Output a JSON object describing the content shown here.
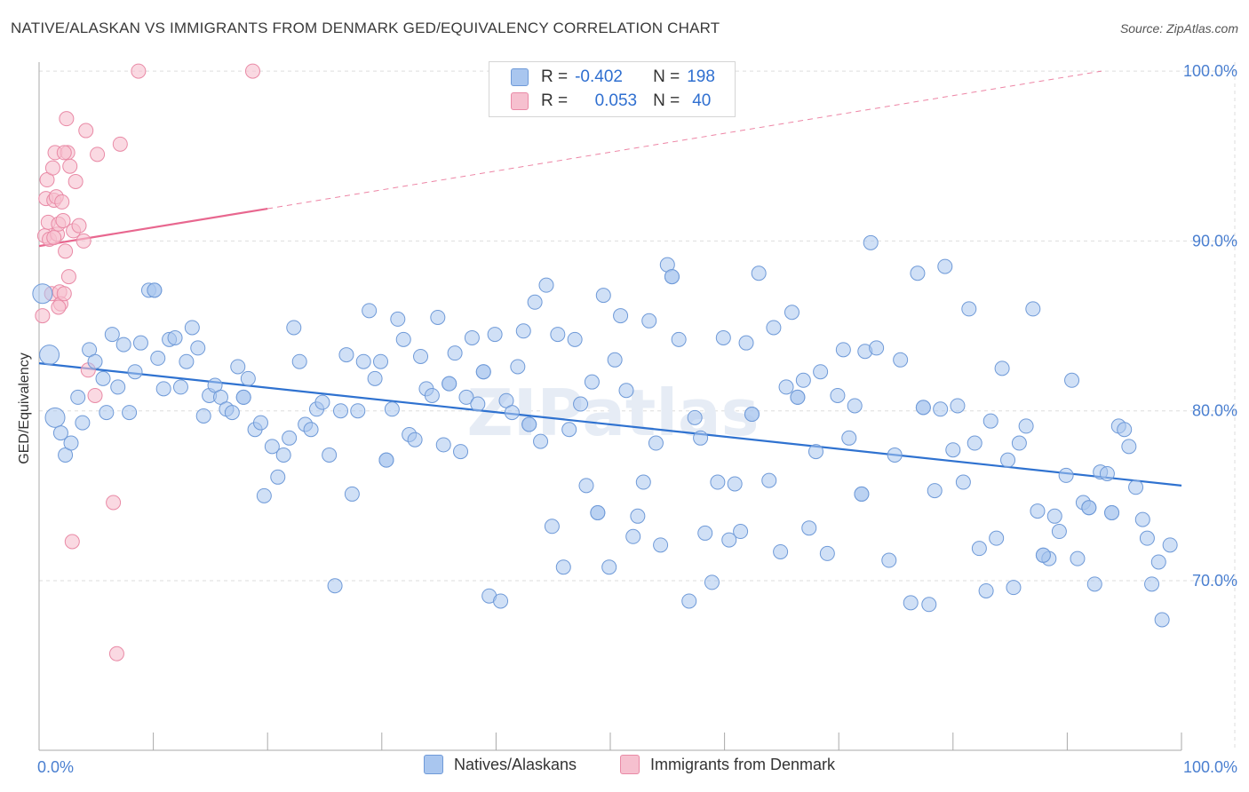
{
  "title": "NATIVE/ALASKAN VS IMMIGRANTS FROM DENMARK GED/EQUIVALENCY CORRELATION CHART",
  "source": "Source: ZipAtlas.com",
  "watermark": "ZIPatlas",
  "legend": {
    "rows": [
      {
        "r_label": "R =",
        "r_value": "-0.402",
        "n_label": "N =",
        "n_value": "198"
      },
      {
        "r_label": "R =",
        "r_value": "0.053",
        "n_label": "N =",
        "n_value": "40"
      }
    ]
  },
  "colors": {
    "blue_fill": "#a9c6ef",
    "blue_stroke": "#6f9ad8",
    "blue_line": "#2f72d0",
    "pink_fill": "#f6c0cf",
    "pink_stroke": "#e98aa6",
    "pink_line": "#e8678f",
    "label_blue": "#4a7fd0",
    "grid": "#dddddd"
  },
  "chart_data": {
    "type": "scatter",
    "title": "NATIVE/ALASKAN VS IMMIGRANTS FROM DENMARK GED/EQUIVALENCY CORRELATION CHART",
    "xlabel": "",
    "ylabel": "GED/Equivalency",
    "xlim": [
      0,
      100
    ],
    "ylim": [
      60,
      102
    ],
    "x_tick_labels": [
      "0.0%",
      "100.0%"
    ],
    "y_ticks": [
      70,
      80,
      90,
      100
    ],
    "y_tick_labels": [
      "70.0%",
      "80.0%",
      "90.0%",
      "100.0%"
    ],
    "legend_position": "top-center",
    "series": [
      {
        "name": "Natives/Alaskans",
        "color": "#a9c6ef",
        "r": -0.402,
        "n": 198,
        "trend": {
          "x": [
            0,
            100
          ],
          "y": [
            82.8,
            75.6
          ],
          "style": "solid"
        },
        "points": [
          [
            0.3,
            86.9
          ],
          [
            0.9,
            83.3
          ],
          [
            1.4,
            79.6
          ],
          [
            1.9,
            78.7
          ],
          [
            2.3,
            77.4
          ],
          [
            2.8,
            78.1
          ],
          [
            3.4,
            80.8
          ],
          [
            3.8,
            79.3
          ],
          [
            4.4,
            83.6
          ],
          [
            4.9,
            82.9
          ],
          [
            5.6,
            81.9
          ],
          [
            5.9,
            79.9
          ],
          [
            6.4,
            84.5
          ],
          [
            6.9,
            81.4
          ],
          [
            7.4,
            83.9
          ],
          [
            7.9,
            79.9
          ],
          [
            8.4,
            82.3
          ],
          [
            8.9,
            84.0
          ],
          [
            9.6,
            87.1
          ],
          [
            10.1,
            87.1
          ],
          [
            10.4,
            83.1
          ],
          [
            10.9,
            81.3
          ],
          [
            11.4,
            84.2
          ],
          [
            11.9,
            84.3
          ],
          [
            12.4,
            81.4
          ],
          [
            12.9,
            82.9
          ],
          [
            13.4,
            84.9
          ],
          [
            13.9,
            83.7
          ],
          [
            14.4,
            79.7
          ],
          [
            14.9,
            80.9
          ],
          [
            15.4,
            81.5
          ],
          [
            15.9,
            80.8
          ],
          [
            16.4,
            80.1
          ],
          [
            16.9,
            79.9
          ],
          [
            17.4,
            82.6
          ],
          [
            17.9,
            80.8
          ],
          [
            18.3,
            81.9
          ],
          [
            18.9,
            78.9
          ],
          [
            19.4,
            79.3
          ],
          [
            19.7,
            75.0
          ],
          [
            20.4,
            77.9
          ],
          [
            20.9,
            76.1
          ],
          [
            21.4,
            77.4
          ],
          [
            21.9,
            78.4
          ],
          [
            22.3,
            84.9
          ],
          [
            22.8,
            82.9
          ],
          [
            23.3,
            79.2
          ],
          [
            23.8,
            78.9
          ],
          [
            24.3,
            80.1
          ],
          [
            24.8,
            80.5
          ],
          [
            25.4,
            77.4
          ],
          [
            25.9,
            69.7
          ],
          [
            26.4,
            80.0
          ],
          [
            26.9,
            83.3
          ],
          [
            27.4,
            75.1
          ],
          [
            27.9,
            80.0
          ],
          [
            28.4,
            82.9
          ],
          [
            28.9,
            85.9
          ],
          [
            29.4,
            81.9
          ],
          [
            29.9,
            82.9
          ],
          [
            30.4,
            77.1
          ],
          [
            30.9,
            80.1
          ],
          [
            31.4,
            85.4
          ],
          [
            31.9,
            84.2
          ],
          [
            32.4,
            78.6
          ],
          [
            32.9,
            78.3
          ],
          [
            33.4,
            83.2
          ],
          [
            33.9,
            81.3
          ],
          [
            34.4,
            80.9
          ],
          [
            34.9,
            85.5
          ],
          [
            35.4,
            78.0
          ],
          [
            35.9,
            81.6
          ],
          [
            36.4,
            83.4
          ],
          [
            36.9,
            77.6
          ],
          [
            37.4,
            80.8
          ],
          [
            37.9,
            84.3
          ],
          [
            38.4,
            80.4
          ],
          [
            38.9,
            82.3
          ],
          [
            39.4,
            69.1
          ],
          [
            39.9,
            84.5
          ],
          [
            40.4,
            68.8
          ],
          [
            40.9,
            80.6
          ],
          [
            41.4,
            79.9
          ],
          [
            41.9,
            82.6
          ],
          [
            42.4,
            84.7
          ],
          [
            42.9,
            79.2
          ],
          [
            43.4,
            86.4
          ],
          [
            43.9,
            78.2
          ],
          [
            44.4,
            87.4
          ],
          [
            44.9,
            73.2
          ],
          [
            45.4,
            84.5
          ],
          [
            45.9,
            70.8
          ],
          [
            46.4,
            78.9
          ],
          [
            46.9,
            84.2
          ],
          [
            47.4,
            80.4
          ],
          [
            47.9,
            75.6
          ],
          [
            48.4,
            81.7
          ],
          [
            48.9,
            74.0
          ],
          [
            49.4,
            86.8
          ],
          [
            49.9,
            70.8
          ],
          [
            50.4,
            83.0
          ],
          [
            50.9,
            85.6
          ],
          [
            51.4,
            81.2
          ],
          [
            52.0,
            72.6
          ],
          [
            52.4,
            73.8
          ],
          [
            52.9,
            75.8
          ],
          [
            53.4,
            85.3
          ],
          [
            54.0,
            78.1
          ],
          [
            54.4,
            72.1
          ],
          [
            55.0,
            88.6
          ],
          [
            55.4,
            87.9
          ],
          [
            56.0,
            84.2
          ],
          [
            56.9,
            68.8
          ],
          [
            57.4,
            79.6
          ],
          [
            57.9,
            78.4
          ],
          [
            58.3,
            72.8
          ],
          [
            58.9,
            69.9
          ],
          [
            59.4,
            75.8
          ],
          [
            59.9,
            84.3
          ],
          [
            60.4,
            72.4
          ],
          [
            60.9,
            75.7
          ],
          [
            61.4,
            72.9
          ],
          [
            61.9,
            84.0
          ],
          [
            62.4,
            79.8
          ],
          [
            63.0,
            88.1
          ],
          [
            63.9,
            75.9
          ],
          [
            64.3,
            84.9
          ],
          [
            64.9,
            71.7
          ],
          [
            65.4,
            81.4
          ],
          [
            65.9,
            85.8
          ],
          [
            66.4,
            80.8
          ],
          [
            66.9,
            81.8
          ],
          [
            67.4,
            73.1
          ],
          [
            68.0,
            77.6
          ],
          [
            68.4,
            82.3
          ],
          [
            69.0,
            71.6
          ],
          [
            69.9,
            80.9
          ],
          [
            70.4,
            83.6
          ],
          [
            70.9,
            78.4
          ],
          [
            71.4,
            80.3
          ],
          [
            72.0,
            75.1
          ],
          [
            72.3,
            83.5
          ],
          [
            72.8,
            89.9
          ],
          [
            73.3,
            83.7
          ],
          [
            74.4,
            71.2
          ],
          [
            74.9,
            77.4
          ],
          [
            75.4,
            83.0
          ],
          [
            76.3,
            68.7
          ],
          [
            76.9,
            88.1
          ],
          [
            77.4,
            80.2
          ],
          [
            77.9,
            68.6
          ],
          [
            78.4,
            75.3
          ],
          [
            78.9,
            80.1
          ],
          [
            79.3,
            88.5
          ],
          [
            80.0,
            77.7
          ],
          [
            80.4,
            80.3
          ],
          [
            80.9,
            75.8
          ],
          [
            81.4,
            86.0
          ],
          [
            81.9,
            78.1
          ],
          [
            82.3,
            71.9
          ],
          [
            82.9,
            69.4
          ],
          [
            83.3,
            79.4
          ],
          [
            83.8,
            72.5
          ],
          [
            84.3,
            82.5
          ],
          [
            84.8,
            77.1
          ],
          [
            85.3,
            69.6
          ],
          [
            85.8,
            78.1
          ],
          [
            86.4,
            79.1
          ],
          [
            87.0,
            86.0
          ],
          [
            87.4,
            74.1
          ],
          [
            87.9,
            71.5
          ],
          [
            88.4,
            71.3
          ],
          [
            88.9,
            73.8
          ],
          [
            89.3,
            72.9
          ],
          [
            89.9,
            76.2
          ],
          [
            90.4,
            81.8
          ],
          [
            90.9,
            71.3
          ],
          [
            91.4,
            74.6
          ],
          [
            91.9,
            74.3
          ],
          [
            92.4,
            69.8
          ],
          [
            92.9,
            76.4
          ],
          [
            93.5,
            76.3
          ],
          [
            93.9,
            74.0
          ],
          [
            94.5,
            79.1
          ],
          [
            95.0,
            78.9
          ],
          [
            95.4,
            77.9
          ],
          [
            96.0,
            75.5
          ],
          [
            96.6,
            73.6
          ],
          [
            97.0,
            72.5
          ],
          [
            97.4,
            69.8
          ],
          [
            98.0,
            71.1
          ],
          [
            98.3,
            67.7
          ],
          [
            99.0,
            72.1
          ],
          [
            55.4,
            87.9
          ],
          [
            30.4,
            77.1
          ],
          [
            42.9,
            79.2
          ],
          [
            35.9,
            81.6
          ],
          [
            38.9,
            82.3
          ],
          [
            72.0,
            75.1
          ],
          [
            77.4,
            80.2
          ],
          [
            48.9,
            74.0
          ],
          [
            93.9,
            74.0
          ],
          [
            87.9,
            71.5
          ],
          [
            91.9,
            74.3
          ],
          [
            10.1,
            87.1
          ],
          [
            62.4,
            79.8
          ],
          [
            66.4,
            80.8
          ],
          [
            17.9,
            80.8
          ]
        ]
      },
      {
        "name": "Immigrants from Denmark",
        "color": "#f6c0cf",
        "r": 0.053,
        "n": 40,
        "trend": {
          "x": [
            0,
            20
          ],
          "y": [
            89.7,
            91.9
          ],
          "style": "solid",
          "extended": {
            "x": [
              20,
              93
            ],
            "y": [
              91.9,
              100.0
            ],
            "style": "dashed"
          }
        },
        "points": [
          [
            0.3,
            85.6
          ],
          [
            0.5,
            90.3
          ],
          [
            0.6,
            92.5
          ],
          [
            0.7,
            93.6
          ],
          [
            0.8,
            91.1
          ],
          [
            0.9,
            90.1
          ],
          [
            1.1,
            86.9
          ],
          [
            1.2,
            94.3
          ],
          [
            1.3,
            92.4
          ],
          [
            1.4,
            95.2
          ],
          [
            1.5,
            92.6
          ],
          [
            1.6,
            90.4
          ],
          [
            1.7,
            91.0
          ],
          [
            1.8,
            87.0
          ],
          [
            1.9,
            86.3
          ],
          [
            2.0,
            92.3
          ],
          [
            2.1,
            91.2
          ],
          [
            2.2,
            86.9
          ],
          [
            2.3,
            89.4
          ],
          [
            2.4,
            97.2
          ],
          [
            2.5,
            95.2
          ],
          [
            2.6,
            87.9
          ],
          [
            2.7,
            94.4
          ],
          [
            3.0,
            90.6
          ],
          [
            3.2,
            93.5
          ],
          [
            3.5,
            90.9
          ],
          [
            3.9,
            90.0
          ],
          [
            4.1,
            96.5
          ],
          [
            4.3,
            82.4
          ],
          [
            4.9,
            80.9
          ],
          [
            5.1,
            95.1
          ],
          [
            6.5,
            74.6
          ],
          [
            7.1,
            95.7
          ],
          [
            6.8,
            65.7
          ],
          [
            8.7,
            100.0
          ],
          [
            18.7,
            100.0
          ],
          [
            2.9,
            72.3
          ],
          [
            1.3,
            90.2
          ],
          [
            2.2,
            95.2
          ],
          [
            1.7,
            86.1
          ]
        ]
      }
    ]
  },
  "bottom_legend": {
    "items": [
      {
        "label": "Natives/Alaskans"
      },
      {
        "label": "Immigrants from Denmark"
      }
    ]
  }
}
